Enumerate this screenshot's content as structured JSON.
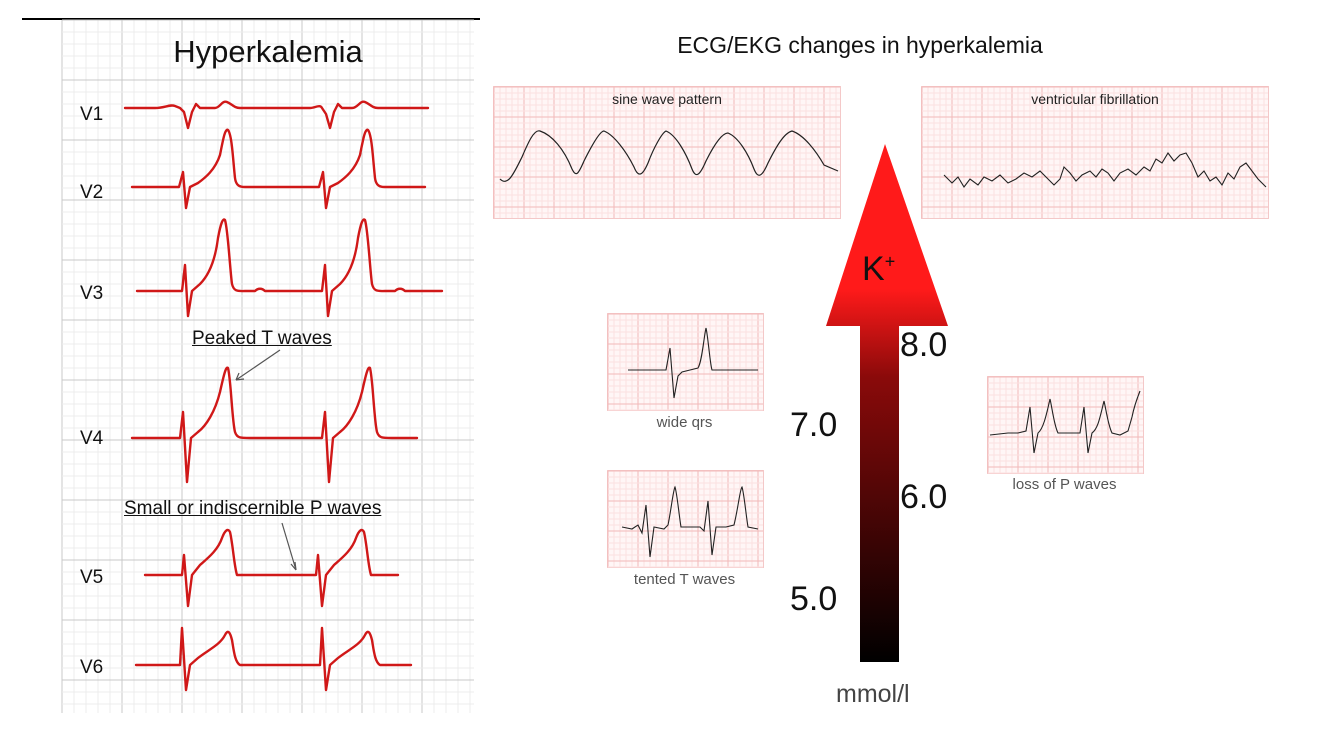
{
  "left_panel": {
    "title": "Hyperkalemia",
    "leads": [
      "V1",
      "V2",
      "V3",
      "V4",
      "V5",
      "V6"
    ],
    "annotations": {
      "peaked": "Peaked T waves",
      "small_p": "Small or indiscernible P waves"
    },
    "trace_color": "#d01818"
  },
  "right_panel": {
    "title": "ECG/EKG changes in hyperkalemia",
    "strips": {
      "sine": "sine wave pattern",
      "vfib": "ventricular fibrillation",
      "wide_qrs": "wide qrs",
      "tented": "tented T waves",
      "loss_p": "loss of P waves"
    },
    "arrow": {
      "symbol": "K",
      "charge": "+",
      "levels": [
        "5.0",
        "6.0",
        "7.0",
        "8.0"
      ],
      "unit": "mmol/l",
      "colors": [
        "#000000",
        "#ff1a1a"
      ]
    }
  }
}
